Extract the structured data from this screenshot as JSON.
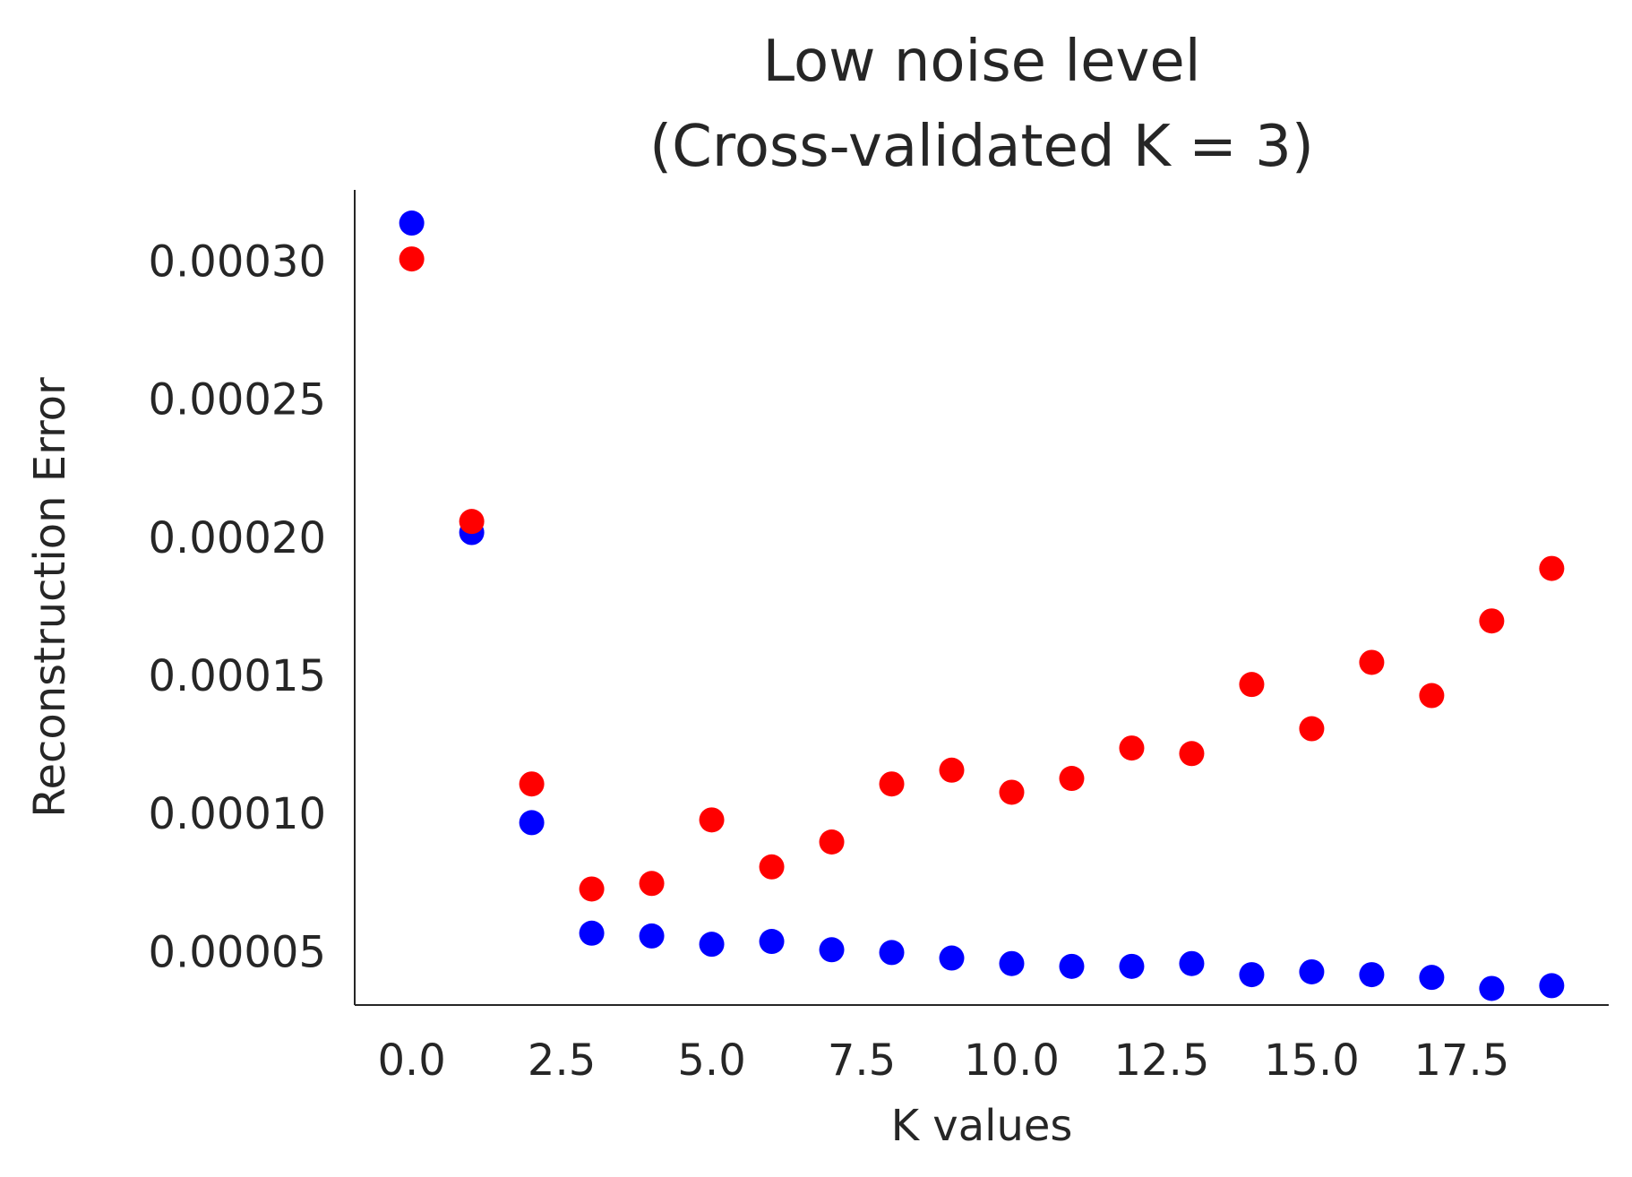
{
  "chart_data": {
    "type": "scatter",
    "title_lines": [
      "Low noise level",
      "(Cross-validated K = 3)"
    ],
    "xlabel": "K values",
    "ylabel": "Reconstruction Error",
    "xlim": [
      -0.95,
      19.95
    ],
    "ylim": [
      3.2e-05,
      0.000327
    ],
    "x_ticks": [
      "0.0",
      "2.5",
      "5.0",
      "7.5",
      "10.0",
      "12.5",
      "15.0",
      "17.5"
    ],
    "x_tick_values": [
      0,
      2.5,
      5,
      7.5,
      10,
      12.5,
      15,
      17.5
    ],
    "y_ticks": [
      "0.00005",
      "0.00010",
      "0.00015",
      "0.00020",
      "0.00025",
      "0.00030"
    ],
    "y_tick_values": [
      5e-05,
      0.0001,
      0.00015,
      0.0002,
      0.00025,
      0.0003
    ],
    "grid": false,
    "series": [
      {
        "color": "#0000ff",
        "x": [
          0,
          1,
          2,
          3,
          4,
          5,
          6,
          7,
          8,
          9,
          10,
          11,
          12,
          13,
          14,
          15,
          16,
          17,
          18,
          19
        ],
        "y": [
          0.000315,
          0.000203,
          9.8e-05,
          5.8e-05,
          5.7e-05,
          5.4e-05,
          5.5e-05,
          5.2e-05,
          5.1e-05,
          4.9e-05,
          4.7e-05,
          4.6e-05,
          4.6e-05,
          4.7e-05,
          4.3e-05,
          4.4e-05,
          4.3e-05,
          4.2e-05,
          3.8e-05,
          3.9e-05
        ]
      },
      {
        "color": "#ff0000",
        "x": [
          0,
          1,
          2,
          3,
          4,
          5,
          6,
          7,
          8,
          9,
          10,
          11,
          12,
          13,
          14,
          15,
          16,
          17,
          18,
          19
        ],
        "y": [
          0.000302,
          0.000207,
          0.000112,
          7.4e-05,
          7.6e-05,
          9.9e-05,
          8.2e-05,
          9.1e-05,
          0.000112,
          0.000117,
          0.000109,
          0.000114,
          0.000125,
          0.000123,
          0.000148,
          0.000132,
          0.000156,
          0.000144,
          0.000171,
          0.00019
        ]
      }
    ]
  }
}
